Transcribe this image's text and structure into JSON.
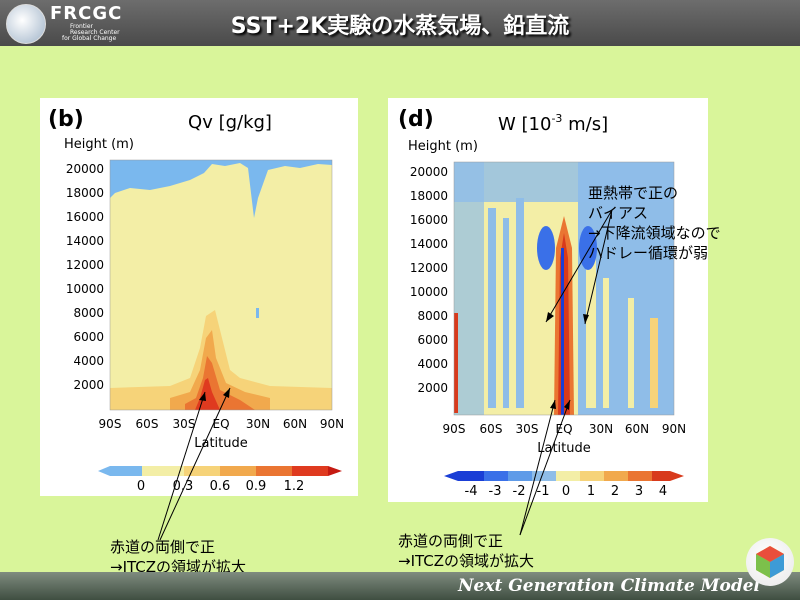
{
  "header": {
    "logo_text": "FRCGC",
    "logo_subtitle": [
      "Frontier",
      "Research Center",
      "for Global Change"
    ],
    "title": "SST+2K実験の水蒸気場、鉛直流"
  },
  "panel_b": {
    "tag": "(b)",
    "title": "Qv [g/kg]",
    "ylabel": "Height (m)",
    "xlabel": "Latitude",
    "y_ticks": [
      "20000",
      "18000",
      "16000",
      "14000",
      "12000",
      "10000",
      "8000",
      "6000",
      "4000",
      "2000"
    ],
    "x_ticks": [
      "90S",
      "60S",
      "30S",
      "EQ",
      "30N",
      "60N",
      "90N"
    ],
    "colorbar_ticks": [
      "0",
      "0.3",
      "0.6",
      "0.9",
      "1.2"
    ],
    "colorbar_colors": [
      "#7ab8ee",
      "#f3eea6",
      "#f6d379",
      "#f1a94d",
      "#ea7532",
      "#df3a1f",
      "#c51a12"
    ]
  },
  "panel_d": {
    "tag": "(d)",
    "title_main": "W [10",
    "title_exp": "-3",
    "title_rest": " m/s]",
    "ylabel": "Height (m)",
    "xlabel": "Latitude",
    "y_ticks": [
      "20000",
      "18000",
      "16000",
      "14000",
      "12000",
      "10000",
      "8000",
      "6000",
      "4000",
      "2000"
    ],
    "x_ticks": [
      "90S",
      "60S",
      "30S",
      "EQ",
      "30N",
      "60N",
      "90N"
    ],
    "colorbar_ticks": [
      "-4",
      "-3",
      "-2",
      "-1",
      "0",
      "1",
      "2",
      "3",
      "4"
    ],
    "colorbar_colors": [
      "#1a3ed6",
      "#3a70e8",
      "#5f9be8",
      "#8fbde8",
      "#f3eea6",
      "#f6d379",
      "#f1a94d",
      "#ea7532",
      "#d83a1c"
    ]
  },
  "annotations": {
    "subtropics": [
      "亜熱帯で正の",
      "バイアス",
      "→下降流領域なので",
      "ハドレー循環が弱"
    ],
    "left_note": [
      "赤道の両側で正",
      "→ITCZの領域が拡大"
    ],
    "right_note": [
      "赤道の両側で正",
      "→ITCZの領域が拡大"
    ]
  },
  "footer": {
    "text": "Next Generation Climate Model"
  }
}
